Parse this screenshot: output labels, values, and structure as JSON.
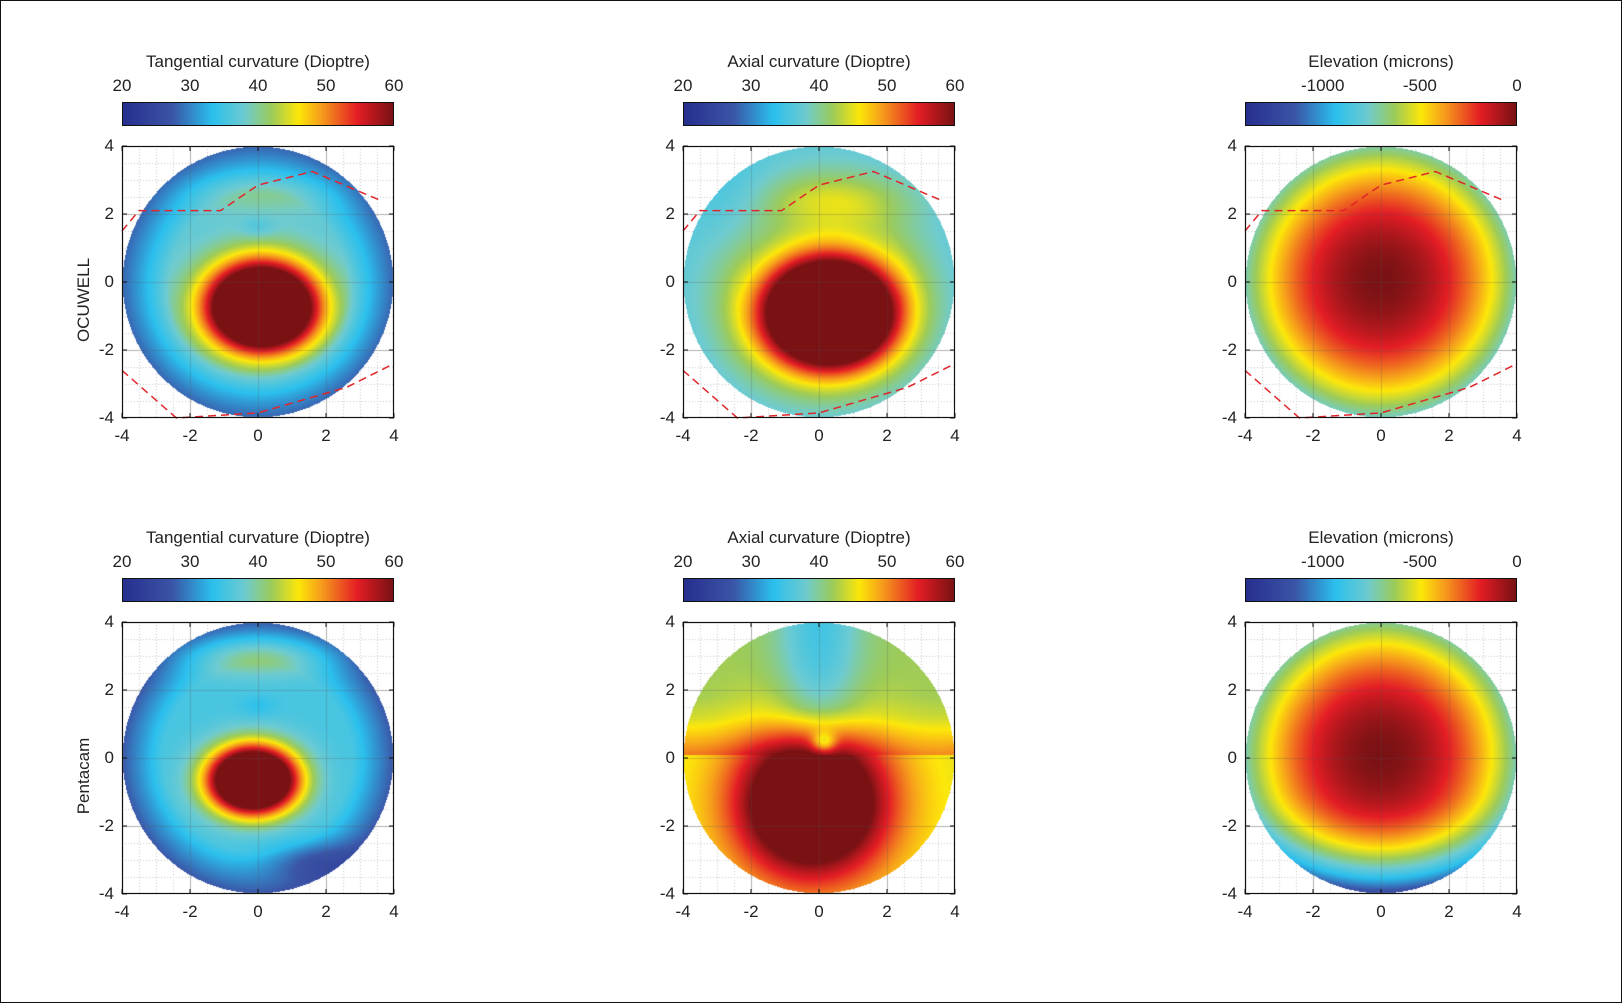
{
  "figure": {
    "row_labels": [
      "OCUWELL",
      "Pentacam"
    ]
  },
  "chart_data": [
    {
      "type": "heatmap",
      "panel": "top-left",
      "row": "OCUWELL",
      "title": "Tangential curvature (Dioptre)",
      "colorbar": {
        "range": [
          20,
          60
        ],
        "ticks": [
          "20",
          "30",
          "40",
          "50",
          "60"
        ],
        "tick_values": [
          20,
          30,
          40,
          50,
          60
        ]
      },
      "xlim": [
        -4,
        4
      ],
      "ylim": [
        -4,
        4
      ],
      "xticks": [
        "-4",
        "-2",
        "0",
        "2",
        "4"
      ],
      "yticks": [
        "4",
        "2",
        "0",
        "-2",
        "-4"
      ],
      "grid": true,
      "field": "tangential_ocuwell",
      "aperture_radius": 4,
      "dashed_lines": [
        [
          [
            -4,
            1.5
          ],
          [
            -3.5,
            2.1
          ],
          [
            -1.1,
            2.1
          ],
          [
            0,
            2.85
          ],
          [
            1.6,
            3.25
          ],
          [
            3.6,
            2.4
          ]
        ],
        [
          [
            -4,
            -2.6
          ],
          [
            -2.4,
            -4.0
          ],
          [
            0,
            -3.85
          ],
          [
            2.6,
            -3.1
          ],
          [
            4,
            -2.4
          ]
        ]
      ]
    },
    {
      "type": "heatmap",
      "panel": "top-middle",
      "row": "OCUWELL",
      "title": "Axial curvature (Dioptre)",
      "colorbar": {
        "range": [
          20,
          60
        ],
        "ticks": [
          "20",
          "30",
          "40",
          "50",
          "60"
        ],
        "tick_values": [
          20,
          30,
          40,
          50,
          60
        ]
      },
      "xlim": [
        -4,
        4
      ],
      "ylim": [
        -4,
        4
      ],
      "xticks": [
        "-4",
        "-2",
        "0",
        "2",
        "4"
      ],
      "yticks": [
        "4",
        "2",
        "0",
        "-2",
        "-4"
      ],
      "grid": true,
      "field": "axial_ocuwell",
      "aperture_radius": 4,
      "dashed_lines": [
        [
          [
            -4,
            1.5
          ],
          [
            -3.5,
            2.1
          ],
          [
            -1.1,
            2.1
          ],
          [
            0,
            2.85
          ],
          [
            1.6,
            3.25
          ],
          [
            3.6,
            2.4
          ]
        ],
        [
          [
            -4,
            -2.6
          ],
          [
            -2.4,
            -4.0
          ],
          [
            0,
            -3.85
          ],
          [
            2.6,
            -3.1
          ],
          [
            4,
            -2.4
          ]
        ]
      ]
    },
    {
      "type": "heatmap",
      "panel": "top-right",
      "row": "OCUWELL",
      "title": "Elevation (microns)",
      "colorbar": {
        "range": [
          -1400,
          0
        ],
        "ticks": [
          "-1000",
          "-500",
          "0"
        ],
        "tick_values": [
          -1000,
          -500,
          0
        ]
      },
      "xlim": [
        -4,
        4
      ],
      "ylim": [
        -4,
        4
      ],
      "xticks": [
        "-4",
        "-2",
        "0",
        "2",
        "4"
      ],
      "yticks": [
        "4",
        "2",
        "0",
        "-2",
        "-4"
      ],
      "grid": true,
      "field": "elevation_ocuwell",
      "aperture_radius": 4,
      "dashed_lines": [
        [
          [
            -4,
            1.5
          ],
          [
            -3.5,
            2.1
          ],
          [
            -1.1,
            2.1
          ],
          [
            0,
            2.85
          ],
          [
            1.6,
            3.25
          ],
          [
            3.6,
            2.4
          ]
        ],
        [
          [
            -4,
            -2.6
          ],
          [
            -2.4,
            -4.0
          ],
          [
            0,
            -3.85
          ],
          [
            2.6,
            -3.1
          ],
          [
            4,
            -2.4
          ]
        ]
      ]
    },
    {
      "type": "heatmap",
      "panel": "bottom-left",
      "row": "Pentacam",
      "title": "Tangential curvature (Dioptre)",
      "colorbar": {
        "range": [
          20,
          60
        ],
        "ticks": [
          "20",
          "30",
          "40",
          "50",
          "60"
        ],
        "tick_values": [
          20,
          30,
          40,
          50,
          60
        ]
      },
      "xlim": [
        -4,
        4
      ],
      "ylim": [
        -4,
        4
      ],
      "xticks": [
        "-4",
        "-2",
        "0",
        "2",
        "4"
      ],
      "yticks": [
        "4",
        "2",
        "0",
        "-2",
        "-4"
      ],
      "grid": true,
      "field": "tangential_pentacam",
      "aperture_radius": 4,
      "dashed_lines": []
    },
    {
      "type": "heatmap",
      "panel": "bottom-middle",
      "row": "Pentacam",
      "title": "Axial curvature (Dioptre)",
      "colorbar": {
        "range": [
          20,
          60
        ],
        "ticks": [
          "20",
          "30",
          "40",
          "50",
          "60"
        ],
        "tick_values": [
          20,
          30,
          40,
          50,
          60
        ]
      },
      "xlim": [
        -4,
        4
      ],
      "ylim": [
        -4,
        4
      ],
      "xticks": [
        "-4",
        "-2",
        "0",
        "2",
        "4"
      ],
      "yticks": [
        "4",
        "2",
        "0",
        "-2",
        "-4"
      ],
      "grid": true,
      "field": "axial_pentacam",
      "aperture_radius": 4,
      "dashed_lines": []
    },
    {
      "type": "heatmap",
      "panel": "bottom-right",
      "row": "Pentacam",
      "title": "Elevation (microns)",
      "colorbar": {
        "range": [
          -1400,
          0
        ],
        "ticks": [
          "-1000",
          "-500",
          "0"
        ],
        "tick_values": [
          -1000,
          -500,
          0
        ]
      },
      "xlim": [
        -4,
        4
      ],
      "ylim": [
        -4,
        4
      ],
      "xticks": [
        "-4",
        "-2",
        "0",
        "2",
        "4"
      ],
      "yticks": [
        "4",
        "2",
        "0",
        "-2",
        "-4"
      ],
      "grid": true,
      "field": "elevation_pentacam",
      "aperture_radius": 4,
      "dashed_lines": []
    }
  ],
  "colormap": {
    "stops": [
      0,
      0.18,
      0.33,
      0.45,
      0.55,
      0.65,
      0.73,
      0.87,
      1.0
    ],
    "colors": [
      "#27308f",
      "#3b55a7",
      "#2bc0ee",
      "#6ecbd0",
      "#9ccb5a",
      "#fde80a",
      "#f7a21b",
      "#e41d25",
      "#7a1214"
    ]
  },
  "styles": {
    "dashed_line_color": "#e0262b",
    "grid_major_color": "#d0d0d0",
    "grid_minor_color": "#c8c8c8"
  }
}
